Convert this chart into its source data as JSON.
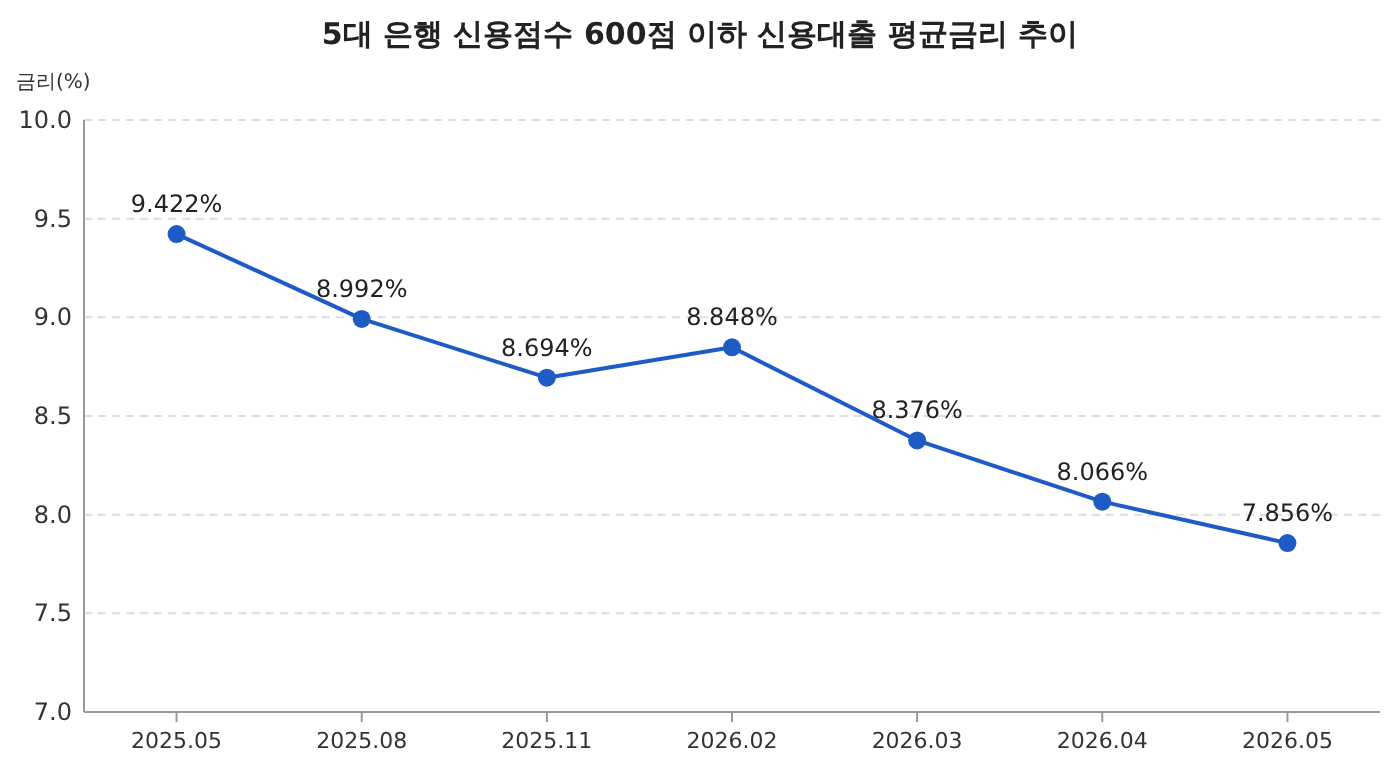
{
  "chart_data": {
    "type": "line",
    "title": "5대 은행 신용점수 600점 이하 신용대출 평균금리 추이",
    "ylabel": "금리(%)",
    "categories": [
      "2025.05",
      "2025.08",
      "2025.11",
      "2026.02",
      "2026.03",
      "2026.04",
      "2026.05"
    ],
    "series": [
      {
        "color": "#1f5bc4",
        "values": [
          9.422,
          8.992,
          8.694,
          8.848,
          8.376,
          8.066,
          7.856
        ],
        "value_labels": [
          "9.422%",
          "8.992%",
          "8.694%",
          "8.848%",
          "8.376%",
          "8.066%",
          "7.856%"
        ]
      }
    ],
    "ylim": [
      7,
      10
    ],
    "yticks": [
      {
        "value": 7,
        "label": "7.0"
      },
      7.5,
      {
        "value": 8,
        "label": "8.0"
      },
      8.5,
      {
        "value": 9,
        "label": "9.0"
      },
      9.5,
      {
        "value": 10,
        "label": "10.0"
      }
    ],
    "grid": "y",
    "marker": "circle",
    "line_style": "solid"
  }
}
